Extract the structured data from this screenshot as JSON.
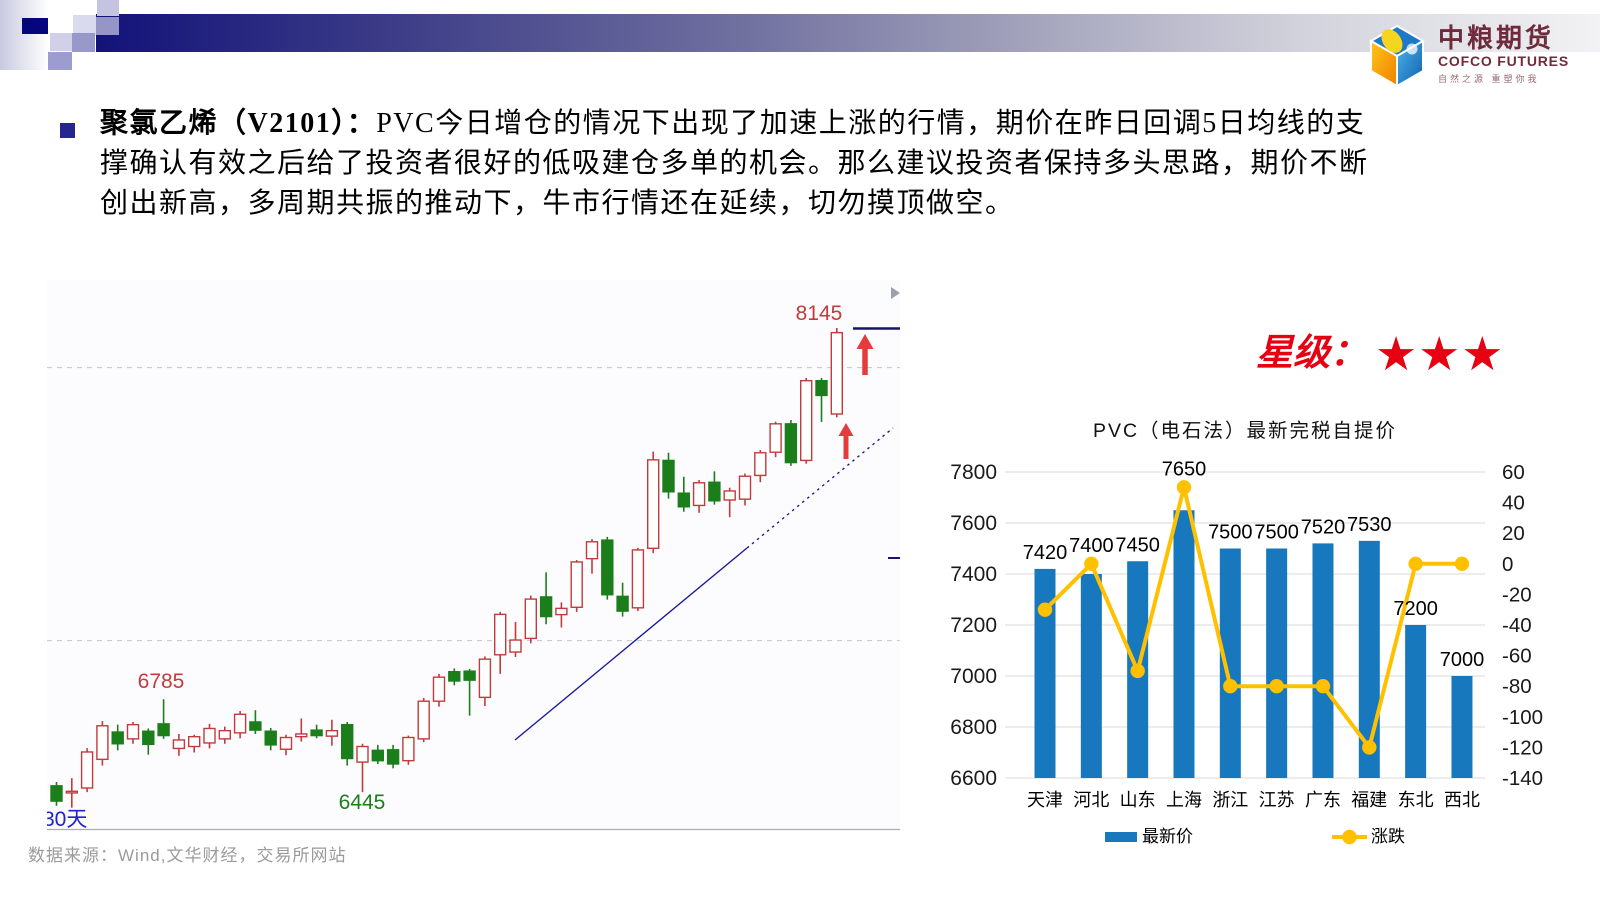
{
  "logo": {
    "cn": "中粮期货",
    "en": "COFCO FUTURES",
    "tagline": "自然之源  重塑你我"
  },
  "bullet": {
    "lead": "聚氯乙烯（V2101）：",
    "line1_rest": "PVC今日增仓的情况下出现了加速上涨的行情，期价在昨日回调5日均线的支",
    "line2": "撑确认有效之后给了投资者很好的低吸建仓多单的机会。那么建议投资者保持多头思路，期价不断",
    "line3": "创出新高，多周期共振的推动下，牛市行情还在延续，切勿摸顶做空。"
  },
  "rating": {
    "label": "星级：",
    "stars": "★★★",
    "color": "#e60012"
  },
  "footer": {
    "text": "数据来源：Wind,文华财经，交易所网站"
  },
  "chart_data": [
    {
      "type": "candlestick",
      "period_label": "30天",
      "annotations": {
        "peak_label": "8145",
        "swing_high_label": "6785",
        "swing_low_label": "6445",
        "up_arrows": 2,
        "trendline": true
      },
      "gridline_prices": [
        8000,
        7000
      ],
      "price_domain": [
        6360,
        8330
      ],
      "colors": {
        "up": "#c23b3b",
        "down": "#1b7e1b",
        "trend": "#1a1a99",
        "grid": "#c6c6c6",
        "period": "#2020cc",
        "arrow": "#e43b3b",
        "marker": "#15156b"
      },
      "candles": [
        [
          6468,
          6482,
          6395,
          6412
        ],
        [
          6442,
          6496,
          6388,
          6448
        ],
        [
          6460,
          6606,
          6445,
          6592
        ],
        [
          6565,
          6705,
          6542,
          6688
        ],
        [
          6665,
          6692,
          6598,
          6622
        ],
        [
          6640,
          6702,
          6622,
          6692
        ],
        [
          6668,
          6678,
          6582,
          6620
        ],
        [
          6695,
          6785,
          6640,
          6652
        ],
        [
          6605,
          6658,
          6578,
          6636
        ],
        [
          6612,
          6655,
          6590,
          6648
        ],
        [
          6625,
          6695,
          6605,
          6678
        ],
        [
          6640,
          6685,
          6622,
          6670
        ],
        [
          6662,
          6742,
          6642,
          6730
        ],
        [
          6702,
          6745,
          6658,
          6672
        ],
        [
          6668,
          6680,
          6598,
          6618
        ],
        [
          6602,
          6655,
          6580,
          6645
        ],
        [
          6648,
          6715,
          6630,
          6658
        ],
        [
          6672,
          6692,
          6642,
          6652
        ],
        [
          6650,
          6710,
          6615,
          6670
        ],
        [
          6692,
          6702,
          6542,
          6568
        ],
        [
          6555,
          6622,
          6445,
          6612
        ],
        [
          6598,
          6618,
          6548,
          6560
        ],
        [
          6600,
          6618,
          6532,
          6548
        ],
        [
          6560,
          6652,
          6545,
          6645
        ],
        [
          6640,
          6790,
          6628,
          6778
        ],
        [
          6778,
          6878,
          6758,
          6866
        ],
        [
          6886,
          6898,
          6836,
          6852
        ],
        [
          6888,
          6896,
          6725,
          6855
        ],
        [
          6792,
          6942,
          6760,
          6932
        ],
        [
          6948,
          7105,
          6878,
          7096
        ],
        [
          6958,
          7068,
          6940,
          7002
        ],
        [
          7008,
          7165,
          6990,
          7152
        ],
        [
          7160,
          7250,
          7060,
          7088
        ],
        [
          7095,
          7140,
          7048,
          7118
        ],
        [
          7122,
          7295,
          7105,
          7288
        ],
        [
          7300,
          7372,
          7245,
          7362
        ],
        [
          7368,
          7380,
          7150,
          7168
        ],
        [
          7162,
          7212,
          7088,
          7108
        ],
        [
          7120,
          7340,
          7108,
          7332
        ],
        [
          7338,
          7692,
          7320,
          7662
        ],
        [
          7660,
          7688,
          7520,
          7545
        ],
        [
          7540,
          7600,
          7472,
          7490
        ],
        [
          7495,
          7588,
          7468,
          7578
        ],
        [
          7580,
          7620,
          7498,
          7512
        ],
        [
          7515,
          7560,
          7452,
          7548
        ],
        [
          7518,
          7612,
          7495,
          7602
        ],
        [
          7605,
          7698,
          7580,
          7688
        ],
        [
          7690,
          7802,
          7672,
          7794
        ],
        [
          7794,
          7808,
          7640,
          7652
        ],
        [
          7660,
          7962,
          7648,
          7952
        ],
        [
          7952,
          7962,
          7801,
          7898
        ],
        [
          7830,
          8145,
          7818,
          8128
        ]
      ]
    },
    {
      "type": "bar+line",
      "title": "PVC（电石法）最新完税自提价",
      "categories": [
        "天津",
        "河北",
        "山东",
        "上海",
        "浙江",
        "江苏",
        "广东",
        "福建",
        "东北",
        "西北"
      ],
      "series": [
        {
          "name": "最新价",
          "type": "bar",
          "axis": "left",
          "color": "#1778be",
          "values": [
            7420,
            7400,
            7450,
            7650,
            7500,
            7500,
            7520,
            7530,
            7200,
            7000
          ]
        },
        {
          "name": "涨跌",
          "type": "line",
          "axis": "right",
          "color": "#ffc000",
          "values": [
            -30,
            0,
            -70,
            50,
            -80,
            -80,
            -80,
            -120,
            0,
            0
          ]
        }
      ],
      "left_axis": {
        "min": 6600,
        "max": 7800,
        "step": 200
      },
      "right_axis": {
        "min": -140,
        "max": 60,
        "step": 20
      },
      "grid_color": "#d9d9d9",
      "legend": [
        "最新价",
        "涨跌"
      ],
      "legend_position": "bottom"
    }
  ]
}
